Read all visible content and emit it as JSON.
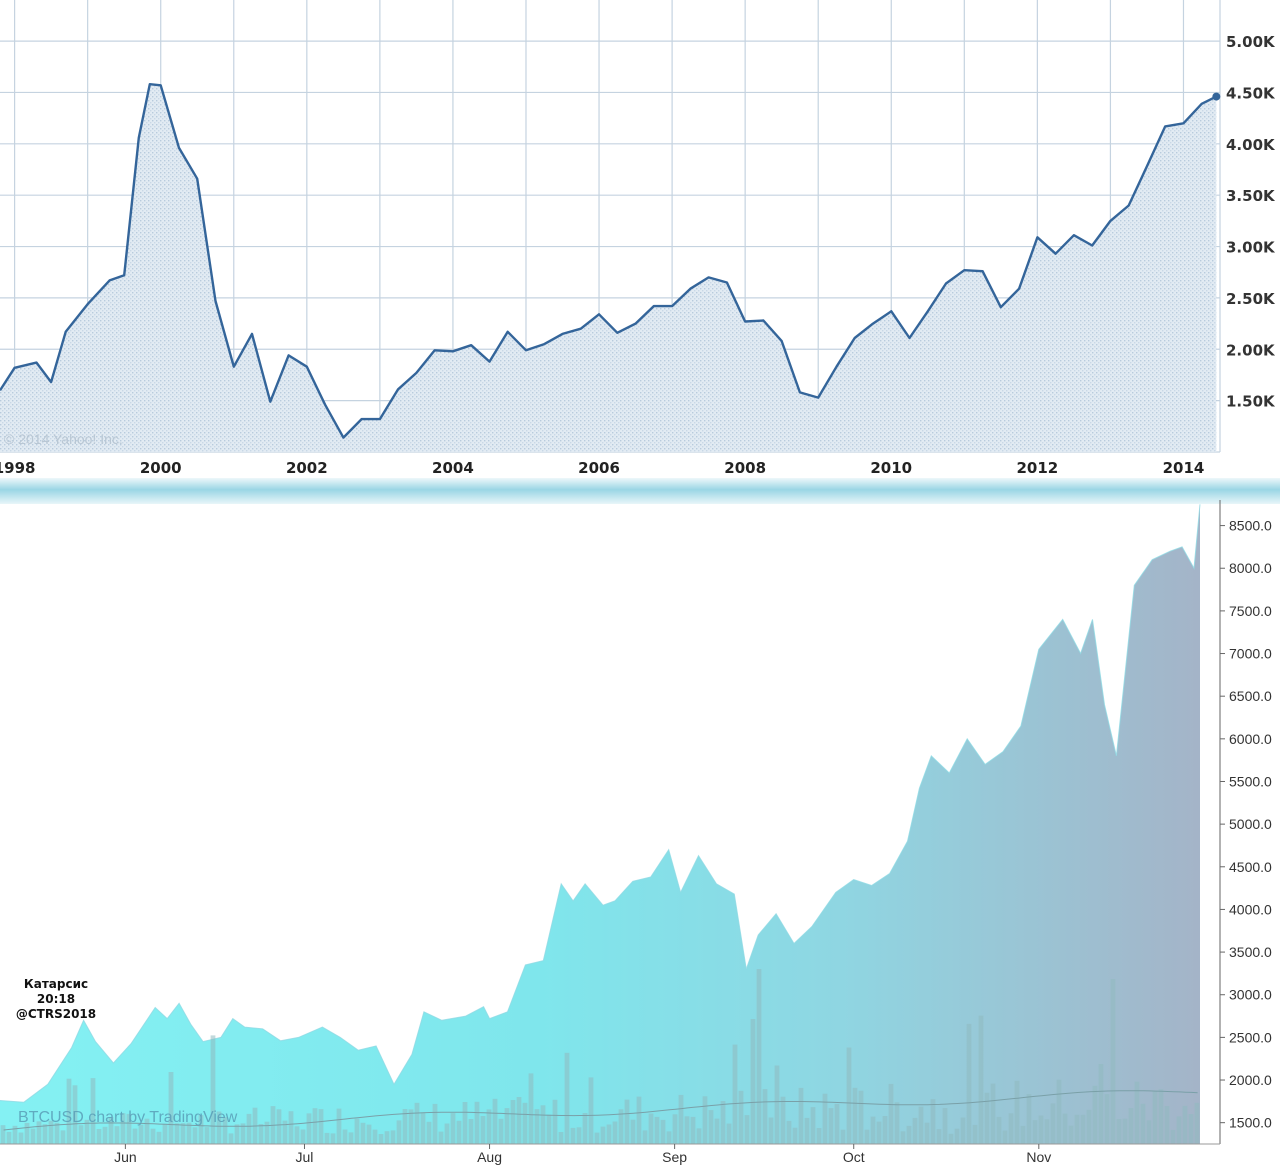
{
  "chart_data": [
    {
      "type": "area",
      "title": "",
      "xlabel": "",
      "ylabel": "",
      "x_tick_labels": [
        "1998",
        "2000",
        "2002",
        "2004",
        "2006",
        "2008",
        "2010",
        "2012",
        "2014"
      ],
      "y_tick_labels": [
        "1.50K",
        "2.00K",
        "2.50K",
        "3.00K",
        "3.50K",
        "4.00K",
        "4.50K",
        "5.00K"
      ],
      "x_range": [
        1997.8,
        2014.5
      ],
      "ylim": [
        1000,
        5400
      ],
      "grid": true,
      "watermark": "© 2014 Yahoo! Inc.",
      "series": [
        {
          "x": [
            1997.8,
            1998.0,
            1998.3,
            1998.5,
            1998.7,
            1999.0,
            1999.3,
            1999.5,
            1999.7,
            1999.85,
            2000.0,
            2000.25,
            2000.5,
            2000.75,
            2001.0,
            2001.25,
            2001.5,
            2001.75,
            2002.0,
            2002.25,
            2002.5,
            2002.75,
            2003.0,
            2003.25,
            2003.5,
            2003.75,
            2004.0,
            2004.25,
            2004.5,
            2004.75,
            2005.0,
            2005.25,
            2005.5,
            2005.75,
            2006.0,
            2006.25,
            2006.5,
            2006.75,
            2007.0,
            2007.25,
            2007.5,
            2007.75,
            2008.0,
            2008.25,
            2008.5,
            2008.75,
            2009.0,
            2009.25,
            2009.5,
            2009.75,
            2010.0,
            2010.25,
            2010.5,
            2010.75,
            2011.0,
            2011.25,
            2011.5,
            2011.75,
            2012.0,
            2012.25,
            2012.5,
            2012.75,
            2013.0,
            2013.25,
            2013.5,
            2013.75,
            2014.0,
            2014.25,
            2014.45
          ],
          "y": [
            1600,
            1820,
            1870,
            1680,
            2170,
            2440,
            2670,
            2720,
            4060,
            4580,
            4570,
            3960,
            3660,
            2470,
            1830,
            2150,
            1490,
            1940,
            1830,
            1460,
            1140,
            1320,
            1320,
            1610,
            1770,
            1990,
            1980,
            2040,
            1880,
            2170,
            1990,
            2050,
            2150,
            2200,
            2340,
            2160,
            2250,
            2420,
            2420,
            2590,
            2700,
            2650,
            2270,
            2280,
            2080,
            1580,
            1530,
            1830,
            2110,
            2250,
            2370,
            2110,
            2370,
            2640,
            2770,
            2760,
            2410,
            2590,
            3090,
            2930,
            3110,
            3010,
            3250,
            3400,
            3780,
            4170,
            4200,
            4390,
            4460
          ]
        }
      ]
    },
    {
      "type": "area",
      "title": "",
      "xlabel": "",
      "ylabel": "",
      "x_tick_labels": [
        "Jun",
        "Jul",
        "Aug",
        "Sep",
        "Oct",
        "Nov"
      ],
      "y_tick_labels": [
        "1500.0",
        "2000.0",
        "2500.0",
        "3000.0",
        "3500.0",
        "4000.0",
        "4500.0",
        "5000.0",
        "5500.0",
        "6000.0",
        "6500.0",
        "7000.0",
        "7500.0",
        "8000.0",
        "8500.0"
      ],
      "ylim": [
        1250,
        8800
      ],
      "grid": false,
      "watermark": "BTCUSD chart by TradingView",
      "series": [
        {
          "x": [
            "2017-05-11",
            "2017-05-15",
            "2017-05-19",
            "2017-05-23",
            "2017-05-25",
            "2017-05-27",
            "2017-05-30",
            "2017-06-02",
            "2017-06-06",
            "2017-06-08",
            "2017-06-10",
            "2017-06-12",
            "2017-06-14",
            "2017-06-17",
            "2017-06-19",
            "2017-06-21",
            "2017-06-24",
            "2017-06-27",
            "2017-06-30",
            "2017-07-04",
            "2017-07-07",
            "2017-07-10",
            "2017-07-13",
            "2017-07-16",
            "2017-07-19",
            "2017-07-21",
            "2017-07-24",
            "2017-07-28",
            "2017-07-31",
            "2017-08-01",
            "2017-08-04",
            "2017-08-07",
            "2017-08-10",
            "2017-08-13",
            "2017-08-15",
            "2017-08-17",
            "2017-08-20",
            "2017-08-22",
            "2017-08-25",
            "2017-08-28",
            "2017-08-31",
            "2017-09-02",
            "2017-09-05",
            "2017-09-08",
            "2017-09-11",
            "2017-09-13",
            "2017-09-15",
            "2017-09-18",
            "2017-09-21",
            "2017-09-24",
            "2017-09-28",
            "2017-10-01",
            "2017-10-04",
            "2017-10-07",
            "2017-10-10",
            "2017-10-12",
            "2017-10-14",
            "2017-10-17",
            "2017-10-20",
            "2017-10-23",
            "2017-10-26",
            "2017-10-29",
            "2017-11-01",
            "2017-11-05",
            "2017-11-08",
            "2017-11-10",
            "2017-11-12",
            "2017-11-14",
            "2017-11-17",
            "2017-11-20",
            "2017-11-23",
            "2017-11-25",
            "2017-11-27",
            "2017-11-28"
          ],
          "y": [
            1760,
            1740,
            1950,
            2380,
            2700,
            2450,
            2200,
            2430,
            2850,
            2720,
            2900,
            2650,
            2450,
            2500,
            2720,
            2620,
            2600,
            2460,
            2500,
            2620,
            2500,
            2350,
            2400,
            1950,
            2300,
            2800,
            2700,
            2750,
            2860,
            2720,
            2800,
            3350,
            3400,
            4300,
            4100,
            4300,
            4050,
            4100,
            4330,
            4380,
            4700,
            4200,
            4630,
            4300,
            4180,
            3300,
            3700,
            3950,
            3600,
            3800,
            4200,
            4350,
            4280,
            4420,
            4800,
            5420,
            5800,
            5600,
            6000,
            5700,
            5850,
            6150,
            7050,
            7400,
            7000,
            7400,
            6400,
            5800,
            7800,
            8100,
            8200,
            8250,
            8000,
            8750
          ]
        }
      ]
    }
  ],
  "annotation": {
    "line1": "Катарсис 20:18",
    "line2": "@CTRS2018"
  }
}
